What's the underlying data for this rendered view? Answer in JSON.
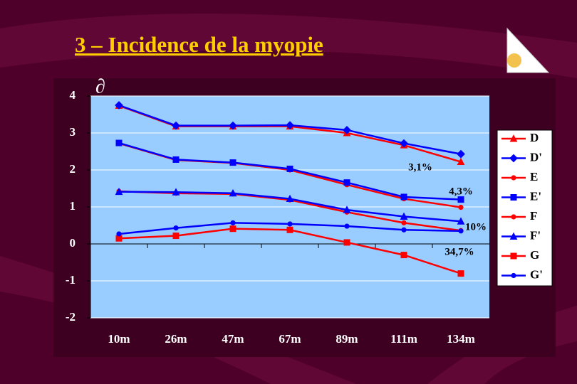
{
  "chart_data": {
    "type": "line",
    "title": "3 – Incidence de la myopie",
    "y_label": "∂",
    "categories": [
      "10m",
      "26m",
      "47m",
      "67m",
      "89m",
      "111m",
      "134m"
    ],
    "ylim": [
      -2,
      4
    ],
    "yticks": [
      -2,
      -1,
      0,
      1,
      2,
      3,
      4
    ],
    "grid": true,
    "legend": "right",
    "series": [
      {
        "name": "D",
        "color": "#ff0000",
        "marker": "triangle",
        "values": [
          3.74,
          3.18,
          3.18,
          3.18,
          3.0,
          2.67,
          2.22
        ]
      },
      {
        "name": "D'",
        "color": "#0000ff",
        "marker": "diamond",
        "values": [
          3.75,
          3.2,
          3.2,
          3.21,
          3.08,
          2.72,
          2.43
        ]
      },
      {
        "name": "E",
        "color": "#ff0000",
        "marker": "circle",
        "values": [
          2.72,
          2.27,
          2.19,
          2.0,
          1.6,
          1.22,
          0.99
        ]
      },
      {
        "name": "E'",
        "color": "#0000ff",
        "marker": "square",
        "values": [
          2.73,
          2.28,
          2.2,
          2.03,
          1.66,
          1.27,
          1.2
        ]
      },
      {
        "name": "F",
        "color": "#ff0000",
        "marker": "circle",
        "values": [
          1.42,
          1.37,
          1.35,
          1.19,
          0.86,
          0.57,
          0.36
        ]
      },
      {
        "name": "F'",
        "color": "#0000ff",
        "marker": "triangle",
        "values": [
          1.41,
          1.4,
          1.37,
          1.22,
          0.92,
          0.74,
          0.61
        ]
      },
      {
        "name": "G",
        "color": "#ff0000",
        "marker": "square",
        "values": [
          0.15,
          0.22,
          0.41,
          0.38,
          0.04,
          -0.3,
          -0.8
        ]
      },
      {
        "name": "G'",
        "color": "#0000ff",
        "marker": "circle",
        "values": [
          0.27,
          0.43,
          0.57,
          0.54,
          0.48,
          0.38,
          0.35
        ]
      }
    ],
    "annotations": [
      "3,1%",
      "4,3%",
      "10%",
      "34,7%"
    ]
  }
}
